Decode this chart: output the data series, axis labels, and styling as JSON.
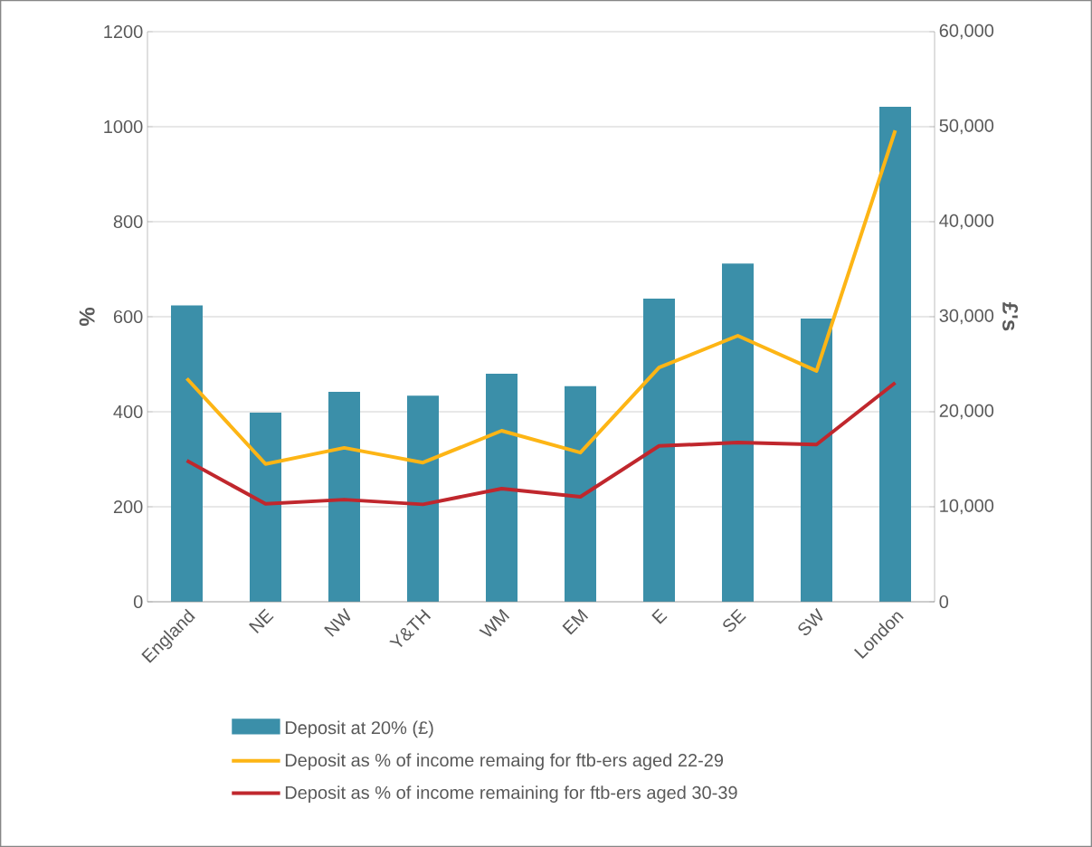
{
  "chart_data": {
    "type": "bar",
    "categories": [
      "England",
      "NE",
      "NW",
      "Y&TH",
      "WM",
      "EM",
      "E",
      "SE",
      "SW",
      "London"
    ],
    "series": [
      {
        "name": "Deposit at 20% (£)",
        "axis": "y2",
        "color": "#3b8fa9",
        "values": [
          31200,
          19900,
          22100,
          21700,
          24000,
          22700,
          31900,
          35600,
          29800,
          52100
        ]
      },
      {
        "name": "Deposit as % of income remaing for ftb-ers aged 22-29",
        "type": "line",
        "color": "#fdb515",
        "values": [
          470,
          290,
          324,
          293,
          360,
          314,
          493,
          560,
          486,
          992
        ]
      },
      {
        "name": "Deposit as % of income remaining for ftb-ers aged 30-39",
        "type": "line",
        "color": "#c0272d",
        "values": [
          297,
          206,
          215,
          205,
          238,
          221,
          328,
          335,
          331,
          461
        ]
      }
    ],
    "ylabel": "%",
    "y2label": "£'s",
    "ylim": [
      0,
      1200
    ],
    "yticks": [
      0,
      200,
      400,
      600,
      800,
      1000,
      1200
    ],
    "y2lim": [
      0,
      60000
    ],
    "y2ticks": [
      0,
      {
        "value": 10000,
        "label": "10,000"
      },
      {
        "value": 20000,
        "label": "20,000"
      },
      {
        "value": 30000,
        "label": "30,000"
      },
      {
        "value": 40000,
        "label": "40,000"
      },
      {
        "value": 50000,
        "label": "50,000"
      },
      {
        "value": 60000,
        "label": "60,000"
      }
    ],
    "grid": "y",
    "legend": "bottom",
    "marker": "none",
    "line_style": "solid"
  }
}
